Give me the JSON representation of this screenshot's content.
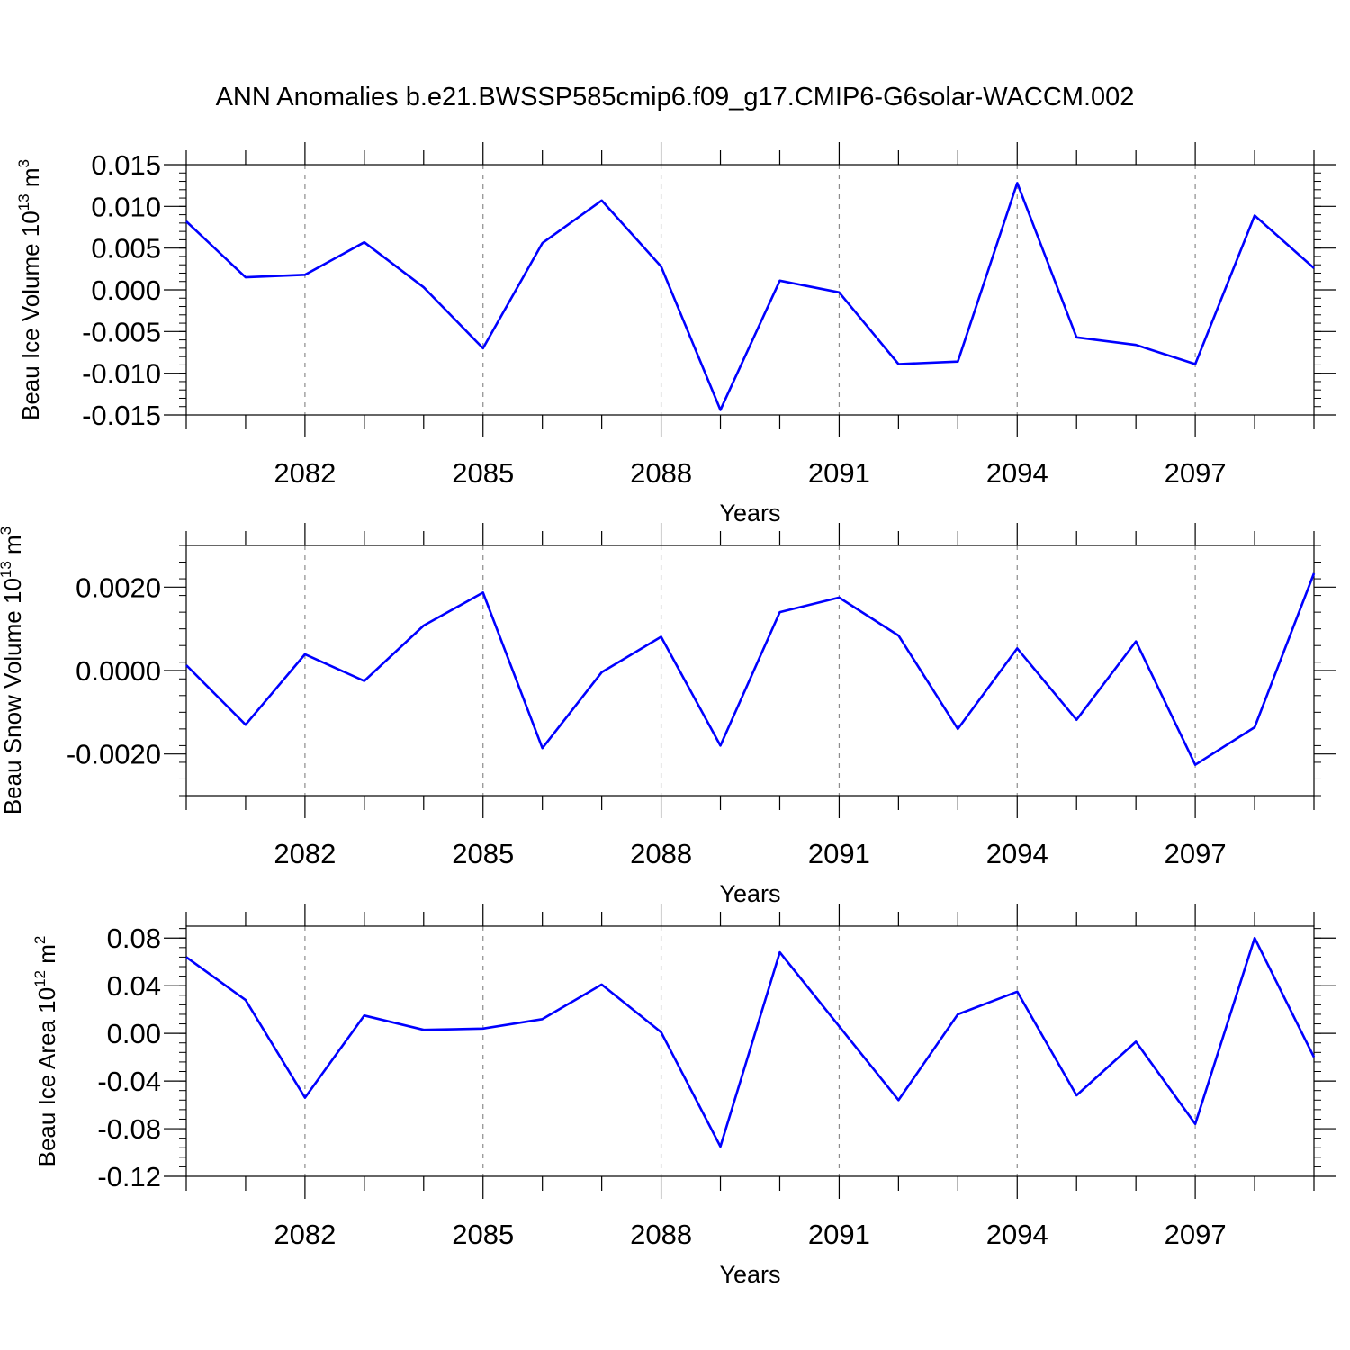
{
  "title": "ANN Anomalies b.e21.BWSSP585cmip6.f09_g17.CMIP6-G6solar-WACCM.002",
  "colors": {
    "line": "#0000ff",
    "axis": "#000000",
    "grid": "#8c8c8c"
  },
  "chart_data": [
    {
      "type": "line",
      "ylabel_main": "Beau Ice Volume 10",
      "ylabel_exp": "13",
      "ylabel_unit": " m",
      "ylabel_unit_exp": "3",
      "xlabel": "Years",
      "xlim": [
        2080,
        2099
      ],
      "ylim": [
        -0.015,
        0.015
      ],
      "yticks": [
        {
          "value": 0.015,
          "label": "0.015"
        },
        {
          "value": 0.01,
          "label": "0.010"
        },
        {
          "value": 0.005,
          "label": "0.005"
        },
        {
          "value": 0.0,
          "label": "0.000"
        },
        {
          "value": -0.005,
          "label": "-0.005"
        },
        {
          "value": -0.01,
          "label": "-0.010"
        },
        {
          "value": -0.015,
          "label": "-0.015"
        }
      ],
      "yminor_step": 0.001,
      "xticks": [
        {
          "value": 2082,
          "label": "2082"
        },
        {
          "value": 2085,
          "label": "2085"
        },
        {
          "value": 2088,
          "label": "2088"
        },
        {
          "value": 2091,
          "label": "2091"
        },
        {
          "value": 2094,
          "label": "2094"
        },
        {
          "value": 2097,
          "label": "2097"
        }
      ],
      "x": [
        2080,
        2081,
        2082,
        2083,
        2084,
        2085,
        2086,
        2087,
        2088,
        2089,
        2090,
        2091,
        2092,
        2093,
        2094,
        2095,
        2096,
        2097,
        2098,
        2099
      ],
      "series": [
        {
          "values": [
            0.0082,
            0.0015,
            0.0018,
            0.0057,
            0.0003,
            -0.007,
            0.0056,
            0.0107,
            0.0028,
            -0.0144,
            0.0011,
            -0.0003,
            -0.0089,
            -0.0086,
            0.0128,
            -0.0057,
            -0.0066,
            -0.0089,
            0.0089,
            0.0026
          ]
        }
      ]
    },
    {
      "type": "line",
      "ylabel_main": "Beau Snow Volume 10",
      "ylabel_exp": "13",
      "ylabel_unit": " m",
      "ylabel_unit_exp": "3",
      "xlabel": "Years",
      "xlim": [
        2080,
        2099
      ],
      "ylim": [
        -0.003,
        0.003
      ],
      "yticks": [
        {
          "value": 0.002,
          "label": "0.0020"
        },
        {
          "value": 0.0,
          "label": "0.0000"
        },
        {
          "value": -0.002,
          "label": "-0.0020"
        }
      ],
      "yminor_step": 0.0004,
      "xticks": [
        {
          "value": 2082,
          "label": "2082"
        },
        {
          "value": 2085,
          "label": "2085"
        },
        {
          "value": 2088,
          "label": "2088"
        },
        {
          "value": 2091,
          "label": "2091"
        },
        {
          "value": 2094,
          "label": "2094"
        },
        {
          "value": 2097,
          "label": "2097"
        }
      ],
      "x": [
        2080,
        2081,
        2082,
        2083,
        2084,
        2085,
        2086,
        2087,
        2088,
        2089,
        2090,
        2091,
        2092,
        2093,
        2094,
        2095,
        2096,
        2097,
        2098,
        2099
      ],
      "series": [
        {
          "values": [
            0.00013,
            -0.0013,
            0.00039,
            -0.00025,
            0.00108,
            0.00187,
            -0.00186,
            -4e-05,
            0.00081,
            -0.0018,
            0.0014,
            0.00175,
            0.00084,
            -0.0014,
            0.00053,
            -0.00118,
            0.0007,
            -0.00226,
            -0.00136,
            0.00233
          ]
        }
      ]
    },
    {
      "type": "line",
      "ylabel_main": "Beau Ice Area 10",
      "ylabel_exp": "12",
      "ylabel_unit": " m",
      "ylabel_unit_exp": "2",
      "xlabel": "Years",
      "xlim": [
        2080,
        2099
      ],
      "ylim": [
        -0.12,
        0.09
      ],
      "yticks": [
        {
          "value": 0.08,
          "label": "0.08"
        },
        {
          "value": 0.04,
          "label": "0.04"
        },
        {
          "value": 0.0,
          "label": "0.00"
        },
        {
          "value": -0.04,
          "label": "-0.04"
        },
        {
          "value": -0.08,
          "label": "-0.08"
        },
        {
          "value": -0.12,
          "label": "-0.12"
        }
      ],
      "yminor_step": 0.008,
      "xticks": [
        {
          "value": 2082,
          "label": "2082"
        },
        {
          "value": 2085,
          "label": "2085"
        },
        {
          "value": 2088,
          "label": "2088"
        },
        {
          "value": 2091,
          "label": "2091"
        },
        {
          "value": 2094,
          "label": "2094"
        },
        {
          "value": 2097,
          "label": "2097"
        }
      ],
      "x": [
        2080,
        2081,
        2082,
        2083,
        2084,
        2085,
        2086,
        2087,
        2088,
        2089,
        2090,
        2091,
        2092,
        2093,
        2094,
        2095,
        2096,
        2097,
        2098,
        2099
      ],
      "series": [
        {
          "values": [
            0.064,
            0.028,
            -0.054,
            0.015,
            0.003,
            0.004,
            0.012,
            0.041,
            0.001,
            -0.095,
            0.068,
            0.006,
            -0.056,
            0.016,
            0.035,
            -0.052,
            -0.007,
            -0.076,
            0.08,
            -0.02
          ]
        }
      ]
    }
  ]
}
